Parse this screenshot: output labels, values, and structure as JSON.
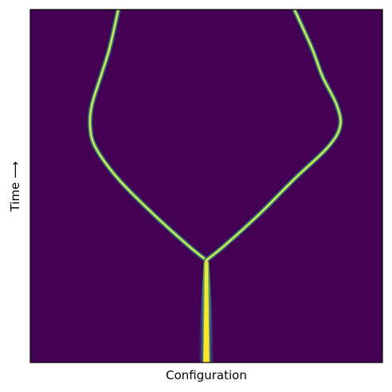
{
  "chart_data": {
    "type": "heatmap",
    "title": "",
    "xlabel": "Configuration",
    "ylabel": "Time ⟶",
    "xlim": [
      -1,
      1
    ],
    "ylim": [
      0,
      1
    ],
    "x_ticks": [],
    "y_ticks": [],
    "grid": false,
    "legend": "none",
    "colormap": "viridis",
    "colors": {
      "background": "#440154",
      "ridge_mid": "#21918c",
      "ridge_peak": "#fde725"
    },
    "branch_point": {
      "x": 0.0,
      "y": 0.29
    },
    "trunk": {
      "name": "",
      "y_range": [
        0.0,
        0.29
      ],
      "center_x": 0.0,
      "width": [
        0.1,
        0.03
      ]
    },
    "branches": [
      {
        "name": "",
        "width": 0.014,
        "points": [
          {
            "x": 0.0,
            "y": 0.29
          },
          {
            "x": -0.1,
            "y": 0.33
          },
          {
            "x": -0.3,
            "y": 0.42
          },
          {
            "x": -0.5,
            "y": 0.52
          },
          {
            "x": -0.63,
            "y": 0.61
          },
          {
            "x": -0.66,
            "y": 0.67
          },
          {
            "x": -0.65,
            "y": 0.73
          },
          {
            "x": -0.6,
            "y": 0.81
          },
          {
            "x": -0.55,
            "y": 0.89
          },
          {
            "x": -0.5,
            "y": 1.0
          }
        ]
      },
      {
        "name": "",
        "width": 0.014,
        "points": [
          {
            "x": 0.0,
            "y": 0.29
          },
          {
            "x": 0.1,
            "y": 0.33
          },
          {
            "x": 0.3,
            "y": 0.42
          },
          {
            "x": 0.5,
            "y": 0.52
          },
          {
            "x": 0.69,
            "y": 0.61
          },
          {
            "x": 0.76,
            "y": 0.67
          },
          {
            "x": 0.74,
            "y": 0.73
          },
          {
            "x": 0.66,
            "y": 0.81
          },
          {
            "x": 0.6,
            "y": 0.89
          },
          {
            "x": 0.5,
            "y": 1.0
          }
        ]
      }
    ]
  }
}
